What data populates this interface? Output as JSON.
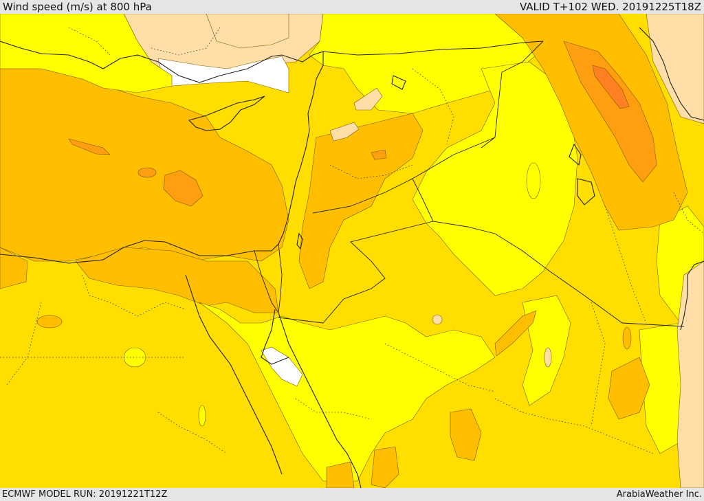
{
  "header": {
    "title": "Wind speed (m/s) at 800 hPa",
    "valid": "VALID T+102 WED. 20191225T18Z"
  },
  "footer": {
    "model_run": "ECMWF MODEL RUN: 20191221T12Z",
    "credit": "ArabiaWeather Inc."
  },
  "colors": {
    "yellow": "#ffff00",
    "gold": "#ffde00",
    "amber": "#ffbe00",
    "orange": "#ff9f10",
    "deep_orange": "#ff8020",
    "peach": "#ffdea8",
    "white": "#ffffff",
    "coast": "#222222"
  },
  "map_icons": [
    "coastline-icon",
    "border-icon"
  ]
}
